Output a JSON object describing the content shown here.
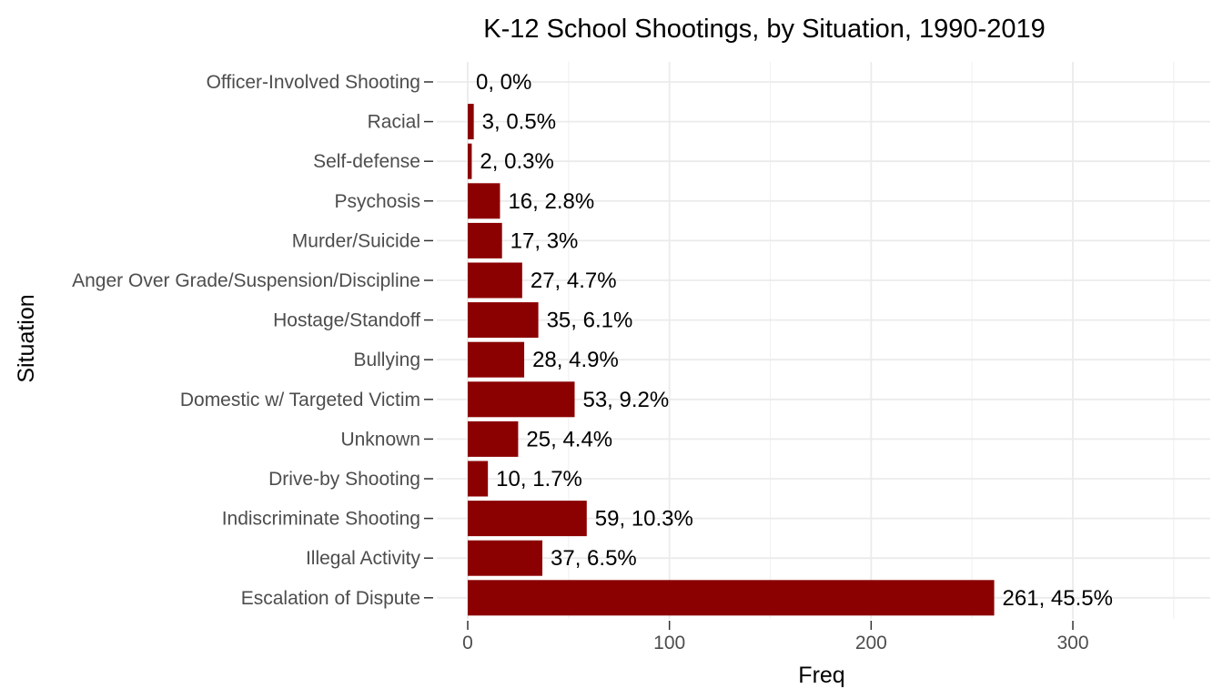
{
  "chart_data": {
    "type": "bar",
    "orientation": "horizontal",
    "title": "K-12 School Shootings, by Situation, 1990-2019",
    "xlabel": "Freq",
    "ylabel": "Situation",
    "categories": [
      "Officer-Involved Shooting",
      "Racial",
      "Self-defense",
      "Psychosis",
      "Murder/Suicide",
      "Anger Over Grade/Suspension/Discipline",
      "Hostage/Standoff",
      "Bullying",
      "Domestic w/ Targeted Victim",
      "Unknown",
      "Drive-by Shooting",
      "Indiscriminate Shooting",
      "Illegal Activity",
      "Escalation of Dispute"
    ],
    "values": [
      0,
      3,
      2,
      16,
      17,
      27,
      35,
      28,
      53,
      25,
      10,
      59,
      37,
      261
    ],
    "data_labels": [
      "0, 0%",
      "3, 0.5%",
      "2, 0.3%",
      "16, 2.8%",
      "17, 3%",
      "27, 4.7%",
      "35, 6.1%",
      "28, 4.9%",
      "53, 9.2%",
      "25, 4.4%",
      "10, 1.7%",
      "59, 10.3%",
      "37, 6.5%",
      "261, 45.5%"
    ],
    "xticks": [
      0,
      100,
      200,
      300
    ],
    "xlim": [
      0,
      350
    ],
    "bar_color": "#8b0000",
    "grid": true
  }
}
